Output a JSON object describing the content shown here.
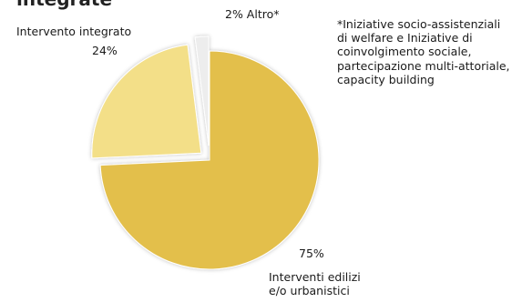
{
  "header_fragment": "integrate",
  "note": "*Iniziative socio-assistenziali di welfare e Iniziative di coinvolgimento sociale, partecipazione multi-attoriale, capacity building",
  "chart_data": {
    "type": "pie",
    "title": "",
    "slices": [
      {
        "name": "Interventi edilizi e/o urbanistici",
        "value": 75,
        "pct_label": "75%",
        "color": "#e3bf4c",
        "exploded": false
      },
      {
        "name": "Intervento integrato",
        "value": 24,
        "pct_label": "24%",
        "color": "#f3df88",
        "exploded": true
      },
      {
        "name": "Altro*",
        "value": 2,
        "pct_label": "2% Altro*",
        "color": "#ededed",
        "exploded": true
      }
    ]
  }
}
